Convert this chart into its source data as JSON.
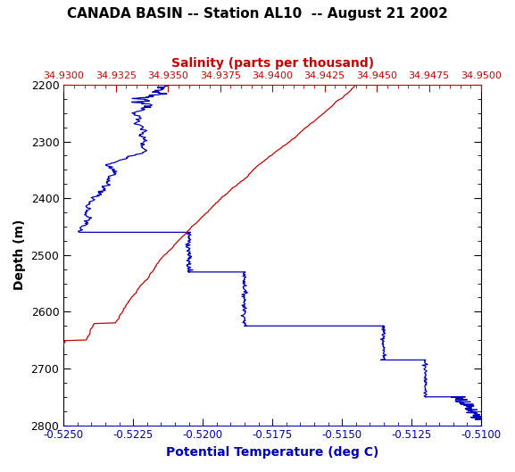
{
  "title": "CANADA BASIN -- Station AL10  -- August 21 2002",
  "salinity_label": "Salinity (parts per thousand)",
  "temp_label": "Potential Temperature (deg C)",
  "depth_label": "Depth (m)",
  "depth_min": 2200,
  "depth_max": 2800,
  "temp_min": -0.525,
  "temp_max": -0.51,
  "sal_min": 34.93,
  "sal_max": 34.95,
  "temp_ticks": [
    -0.525,
    -0.5225,
    -0.52,
    -0.5175,
    -0.515,
    -0.5125,
    -0.51
  ],
  "sal_ticks": [
    34.93,
    34.9325,
    34.935,
    34.9375,
    34.94,
    34.9425,
    34.945,
    34.9475,
    34.95
  ],
  "depth_ticks": [
    2200,
    2300,
    2400,
    2500,
    2600,
    2700,
    2800
  ],
  "blue_color": "#0000bb",
  "red_color": "#cc0000",
  "title_color": "#000000",
  "background_color": "#ffffff"
}
